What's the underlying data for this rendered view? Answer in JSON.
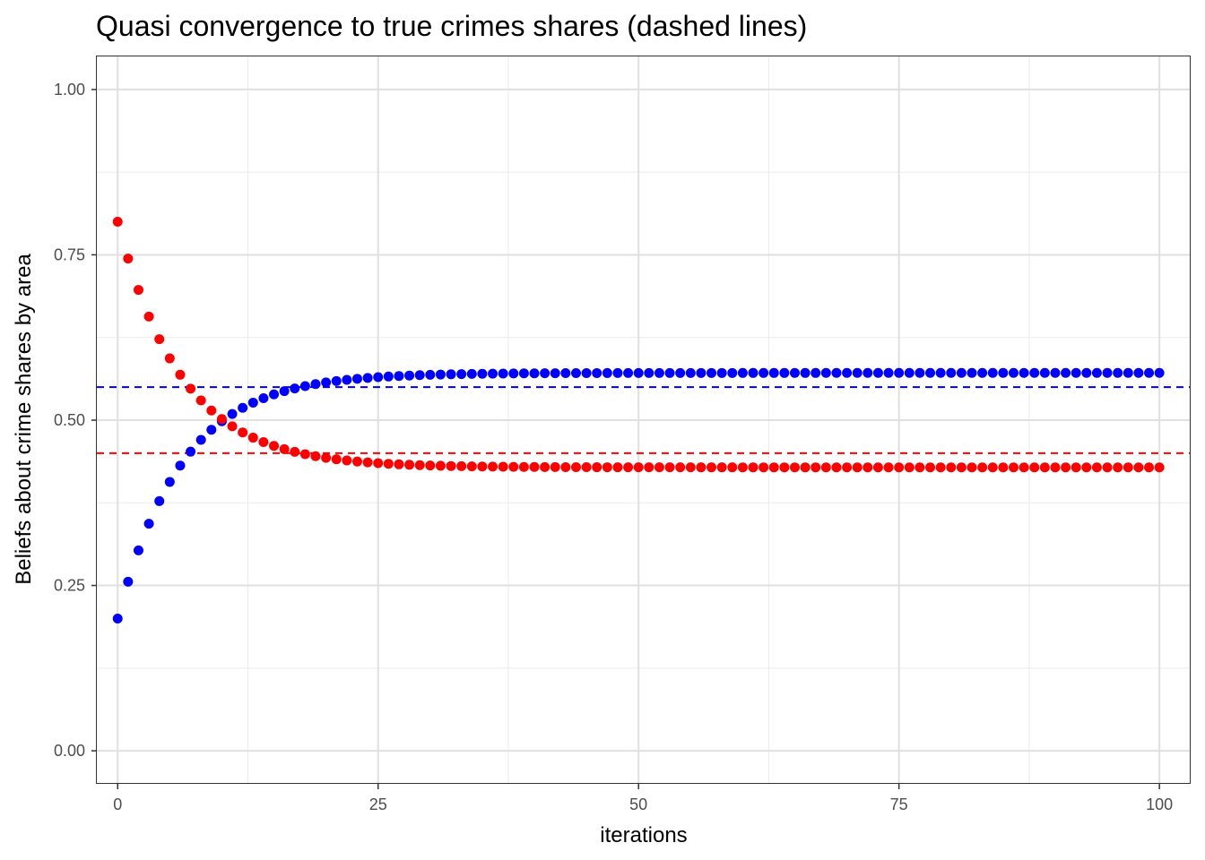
{
  "chart_data": {
    "type": "scatter",
    "title": "Quasi convergence to true crimes shares (dashed lines)",
    "xlabel": "iterations",
    "ylabel": "Beliefs about crime shares by area",
    "xlim": [
      -2,
      103
    ],
    "ylim": [
      -0.05,
      1.05
    ],
    "x_ticks": [
      0,
      25,
      50,
      75,
      100
    ],
    "x_tick_labels": [
      "0",
      "25",
      "50",
      "75",
      "100"
    ],
    "y_ticks": [
      0,
      0.25,
      0.5,
      0.75,
      1.0
    ],
    "y_tick_labels": [
      "0.00",
      "0.25",
      "0.50",
      "0.75",
      "1.00"
    ],
    "grid": true,
    "legend": "none",
    "series": [
      {
        "color": "#0000ff",
        "start": 0.2,
        "limit": 0.5714,
        "rate": 0.15,
        "x_start": 0,
        "x_end": 100
      },
      {
        "color": "#ff0000",
        "start": 0.8,
        "limit": 0.4286,
        "rate": 0.15,
        "x_start": 0,
        "x_end": 100
      }
    ],
    "reference_lines": [
      {
        "y": 0.55,
        "color": "#0000ff",
        "style": "dashed"
      },
      {
        "y": 0.45,
        "color": "#ff0000",
        "style": "dashed"
      }
    ]
  }
}
